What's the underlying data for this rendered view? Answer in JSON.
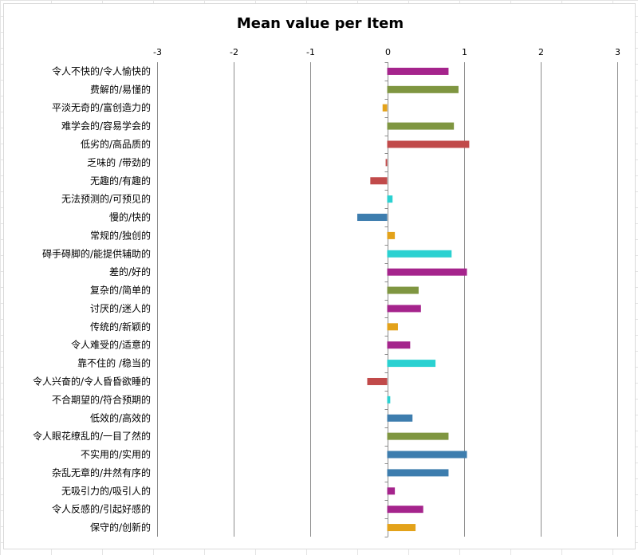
{
  "chart_data": {
    "type": "bar",
    "orientation": "horizontal",
    "title": "Mean value per Item",
    "xlabel": "",
    "ylabel": "",
    "xlim": [
      -3,
      3
    ],
    "xticks": [
      -3,
      -2,
      -1,
      0,
      1,
      2,
      3
    ],
    "grid": true,
    "legend": "none",
    "categories": [
      "令人不快的/令人愉快的",
      "费解的/易懂的",
      "平淡无奇的/富创造力的",
      "难学会的/容易学会的",
      "低劣的/高品质的",
      "乏味的 /带劲的",
      "无趣的/有趣的",
      "无法预测的/可预见的",
      "慢的/快的",
      "常规的/独创的",
      "碍手碍脚的/能提供辅助的",
      "差的/好的",
      "复杂的/简单的",
      "讨厌的/迷人的",
      "传统的/新颖的",
      "令人难受的/适意的",
      "靠不住的 /稳当的",
      "令人兴奋的/令人昏昏欲睡的",
      "不合期望的/符合预期的",
      "低效的/高效的",
      "令人眼花缭乱的/一目了然的",
      "不实用的/实用的",
      "杂乱无章的/井然有序的",
      "无吸引力的/吸引人的",
      "令人反感的/引起好感的",
      "保守的/创新的"
    ],
    "values": [
      0.8,
      0.93,
      -0.06,
      0.87,
      1.07,
      -0.02,
      -0.22,
      0.07,
      -0.39,
      0.1,
      0.84,
      1.04,
      0.41,
      0.44,
      0.14,
      0.3,
      0.63,
      -0.26,
      0.04,
      0.33,
      0.8,
      1.04,
      0.8,
      0.1,
      0.47,
      0.37
    ],
    "colors": [
      "#a5248c",
      "#7f9641",
      "#e3a21a",
      "#7f9641",
      "#c14a4a",
      "#c14a4a",
      "#c14a4a",
      "#2ad1d1",
      "#3d7dae",
      "#e3a21a",
      "#2ad1d1",
      "#a5248c",
      "#7f9641",
      "#a5248c",
      "#e3a21a",
      "#a5248c",
      "#2ad1d1",
      "#c14a4a",
      "#2ad1d1",
      "#3d7dae",
      "#7f9641",
      "#3d7dae",
      "#3d7dae",
      "#a5248c",
      "#a5248c",
      "#e3a21a"
    ]
  }
}
